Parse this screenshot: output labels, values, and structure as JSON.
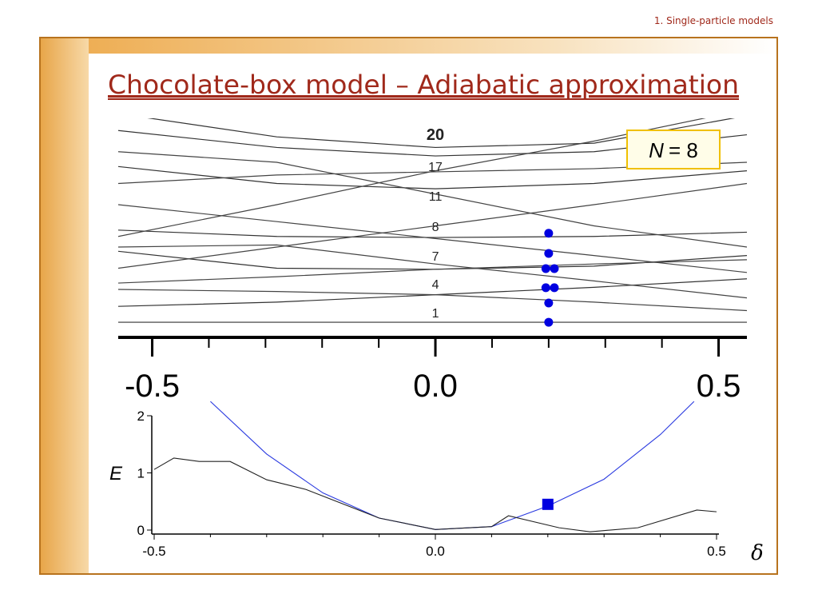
{
  "header": {
    "section": "1. Single-particle models",
    "title": "Chocolate-box model – Adiabatic approximation"
  },
  "chart_data": [
    {
      "type": "line",
      "xlim": [
        -0.56,
        0.55
      ],
      "ylim": [
        0,
        10
      ],
      "xticks": [
        -0.5,
        {
          "value": 0,
          "label": "0.0"
        },
        0.5
      ],
      "minor_xticks": [
        -0.4,
        -0.3,
        -0.2,
        -0.1,
        0.1,
        0.2,
        0.3,
        0.4
      ],
      "x": [
        -0.56,
        -0.28,
        0,
        0.28,
        0.55
      ],
      "series": [
        {
          "color": "#333333",
          "values": [
            0.45,
            0.45,
            0.45,
            0.45,
            0.45
          ]
        },
        {
          "color": "#333333",
          "values": [
            1.2,
            1.4,
            1.75,
            2.1,
            2.5
          ]
        },
        {
          "color": "#444444",
          "values": [
            2.0,
            1.9,
            1.75,
            1.4,
            1.0
          ]
        },
        {
          "color": "#333333",
          "values": [
            3.8,
            3.0,
            2.95,
            3.1,
            3.6
          ]
        },
        {
          "color": "#444444",
          "values": [
            2.3,
            2.6,
            2.95,
            3.2,
            3.4
          ]
        },
        {
          "color": "#333333",
          "values": [
            4.8,
            4.5,
            4.45,
            4.5,
            4.7
          ]
        },
        {
          "color": "#444444",
          "values": [
            4.0,
            4.1,
            3.2,
            2.4,
            1.6
          ]
        },
        {
          "color": "#444444",
          "values": [
            6.0,
            5.2,
            4.4,
            3.6,
            2.8
          ]
        },
        {
          "color": "#444444",
          "values": [
            3.0,
            4.0,
            5.0,
            6.0,
            7.0
          ]
        },
        {
          "color": "#333333",
          "values": [
            7.8,
            7.0,
            6.75,
            7.0,
            7.6
          ]
        },
        {
          "color": "#444444",
          "values": [
            7.0,
            7.4,
            7.55,
            7.7,
            8.0
          ]
        },
        {
          "color": "#333333",
          "values": [
            9.5,
            8.7,
            8.3,
            8.5,
            9.3
          ]
        },
        {
          "color": "#333333",
          "values": [
            10.3,
            9.2,
            8.7,
            8.9,
            10.2
          ]
        },
        {
          "color": "#444444",
          "values": [
            8.5,
            8.0,
            6.5,
            5.0,
            4.0
          ]
        },
        {
          "color": "#444444",
          "values": [
            4.5,
            6.0,
            7.6,
            9.0,
            10.5
          ]
        }
      ],
      "points": {
        "color": "#0000e0",
        "x": [
          0.2,
          0.2,
          0.195,
          0.21,
          0.195,
          0.21,
          0.2,
          0.2
        ],
        "y": [
          4.65,
          3.7,
          2.98,
          2.98,
          2.08,
          2.08,
          1.36,
          0.45
        ]
      },
      "shell_labels": [
        20,
        17,
        11,
        8,
        7,
        4,
        1
      ],
      "annotation": {
        "symbol": "N",
        "text": "= 8"
      }
    },
    {
      "type": "line",
      "xlim": [
        -0.5,
        0.5
      ],
      "ylim": [
        -0.07,
        2
      ],
      "xticks": [
        -0.5,
        {
          "value": 0,
          "label": "0.0"
        },
        0.5
      ],
      "minor_xticks": [
        -0.4,
        -0.3,
        -0.2,
        -0.1,
        0.1,
        0.2,
        0.3,
        0.4
      ],
      "yticks": [
        0,
        1,
        2
      ],
      "xlabel": "δ",
      "ylabel": "E",
      "series": [
        {
          "color": "#2a3ae0",
          "x": [
            -0.4,
            -0.3,
            -0.2,
            -0.1,
            0,
            0.1,
            0.2,
            0.3,
            0.4,
            0.46
          ],
          "values": [
            2.25,
            1.33,
            0.65,
            0.21,
            0.01,
            0.06,
            0.42,
            0.89,
            1.67,
            2.25
          ]
        },
        {
          "color": "#222222",
          "x": [
            -0.5,
            -0.465,
            -0.42,
            -0.365,
            -0.3,
            -0.23,
            -0.1,
            0,
            0.1,
            0.13,
            0.22,
            0.275,
            0.36,
            0.465,
            0.5
          ],
          "values": [
            1.06,
            1.26,
            1.2,
            1.2,
            0.88,
            0.71,
            0.21,
            0.01,
            0.06,
            0.25,
            0.04,
            -0.03,
            0.04,
            0.35,
            0.32
          ]
        }
      ],
      "marker": {
        "color": "#0000e0",
        "x": 0.2,
        "y": 0.45
      }
    }
  ]
}
